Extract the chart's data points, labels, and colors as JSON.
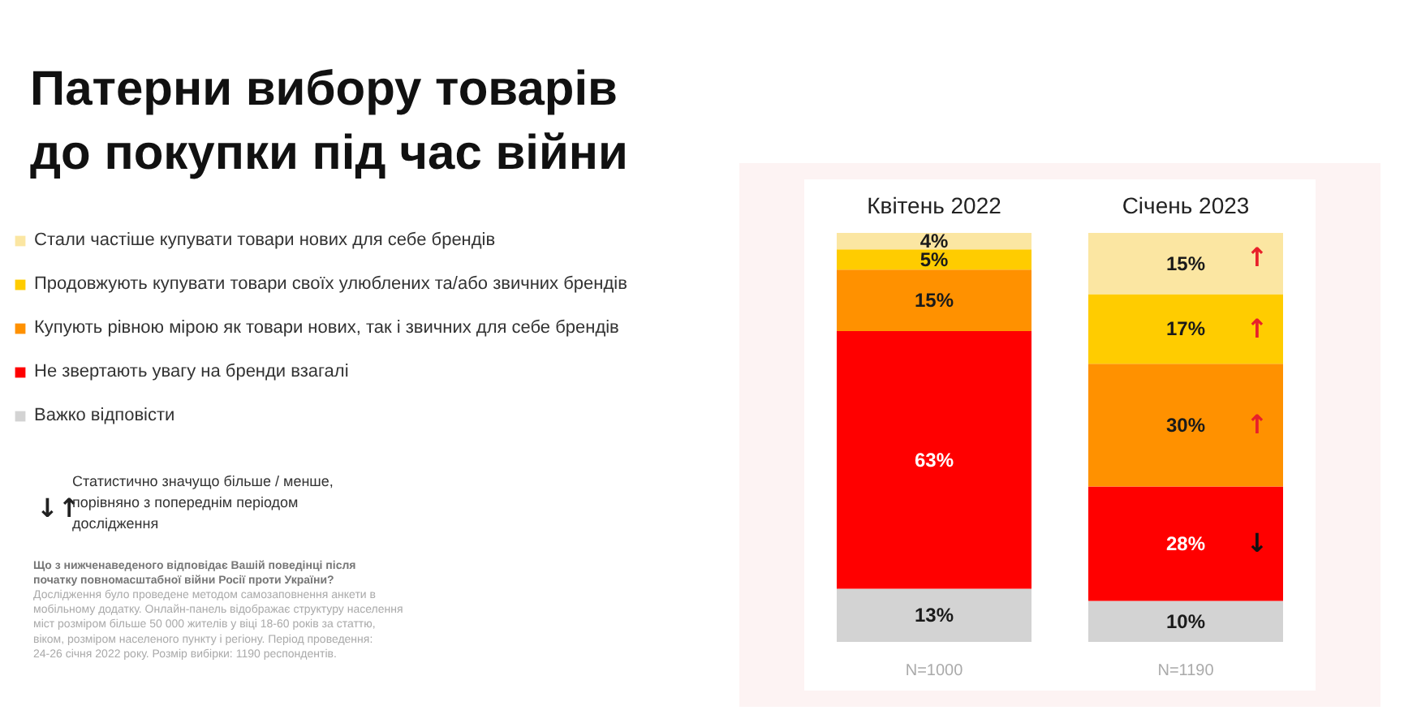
{
  "chart_data": {
    "type": "bar",
    "title": "Патерни вибору товарів до покупки під час війни",
    "categories": [
      "Квітень 2022",
      "Січень 2023"
    ],
    "stacked": true,
    "legend": "left",
    "series": [
      {
        "name": "Важко відповісти",
        "color": "#d3d3d3",
        "values": [
          13,
          10
        ],
        "value_labels": [
          "13%",
          "10%"
        ]
      },
      {
        "name": "Не звертають увагу на бренди взагалі",
        "color": "#ff0000",
        "values": [
          63,
          28
        ],
        "value_labels": [
          "63%",
          "28%"
        ]
      },
      {
        "name": "Купують рівною мірою як товари нових, так і звичних для себе брендів",
        "color": "#ff9100",
        "values": [
          15,
          30
        ],
        "value_labels": [
          "15%",
          "30%"
        ]
      },
      {
        "name": "Продовжують купувати товари своїх улюблених та/або звичних брендів",
        "color": "#ffcc00",
        "values": [
          5,
          17
        ],
        "value_labels": [
          "5%",
          "17%"
        ]
      },
      {
        "name": "Стали частіше купувати товари нових для себе брендів",
        "color": "#fbe6a2",
        "values": [
          4,
          15
        ],
        "value_labels": [
          "4%",
          "15%"
        ]
      }
    ],
    "annotations": [
      "↓↑",
      "Статистично значущо більше / менше, порівняно з попереднім періодом дослідження",
      "Що з нижченаведеного відповідає Вашій поведінці після початку повномасштабної війни Росії проти України?",
      "Дослідження було проведене методом самозаповнення анкети в мобільному додатку. Онлайн-панель відображає структуру населення міст розміром більше 50 000 жителів у віці 18-60 років за статтю, віком, розміром населеного пункту і регіону. Період проведення: 24-26 січня 2022 року. Розмір вибірки: 1190 респондентів.",
      "N=1000",
      "N=1190",
      "↑",
      "↑",
      "↑",
      "↓"
    ]
  }
}
